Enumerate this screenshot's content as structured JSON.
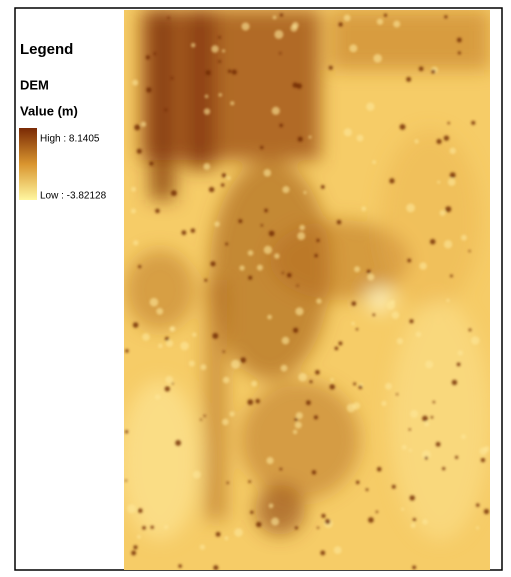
{
  "legend": {
    "title": "Legend",
    "layer": "DEM",
    "field": "Value (m)",
    "high": "High : 8.1405",
    "low": "Low : -3.82128"
  }
}
